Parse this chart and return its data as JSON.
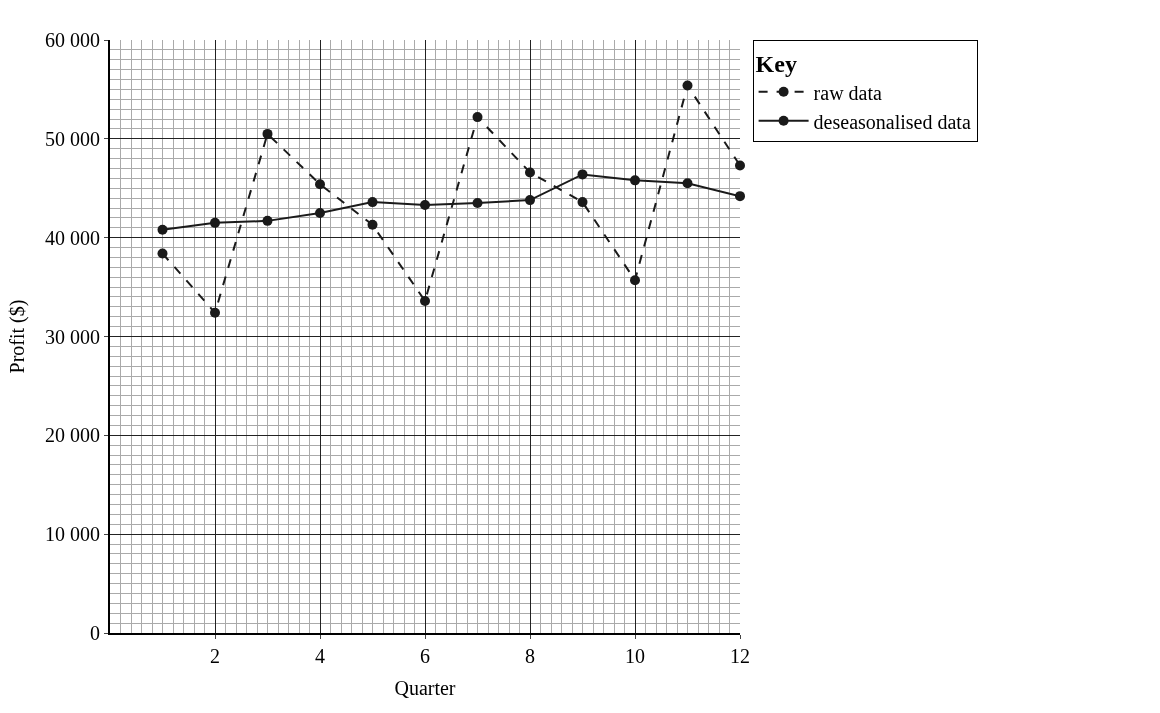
{
  "chart_data": {
    "type": "line",
    "xlabel": "Quarter",
    "ylabel": "Profit ($)",
    "legend_title": "Key",
    "x": [
      1,
      2,
      3,
      4,
      5,
      6,
      7,
      8,
      9,
      10,
      11,
      12
    ],
    "series": [
      {
        "name": "raw data",
        "color": "#1a1a1a",
        "line_style": "dashed",
        "values": [
          38400,
          32400,
          50500,
          45400,
          41300,
          33600,
          52200,
          46600,
          43600,
          35700,
          55400,
          47300
        ]
      },
      {
        "name": "deseasonalised data",
        "color": "#1a1a1a",
        "line_style": "solid",
        "values": [
          40800,
          41500,
          41700,
          42500,
          43600,
          43300,
          43500,
          43800,
          46400,
          45800,
          45500,
          44200
        ]
      }
    ],
    "xlim": [
      0,
      12
    ],
    "xticks": [
      2,
      4,
      6,
      8,
      10,
      12
    ],
    "ylim": [
      0,
      60000
    ],
    "yticks": [
      0,
      {
        "value": 10000,
        "label": "10 000"
      },
      {
        "value": 20000,
        "label": "20 000"
      },
      {
        "value": 30000,
        "label": "30 000"
      },
      {
        "value": 40000,
        "label": "40 000"
      },
      {
        "value": 50000,
        "label": "50 000"
      },
      {
        "value": 60000,
        "label": "60 000"
      }
    ],
    "grid": true,
    "marker": "circle",
    "legend": "top right"
  }
}
